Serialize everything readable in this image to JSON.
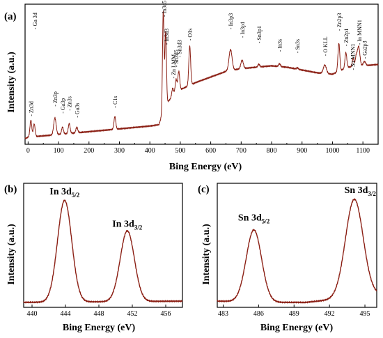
{
  "panels": [
    {
      "id": "a",
      "letter": "(a)",
      "xlabel": "Bing Energy (eV)",
      "ylabel": "Intensity (a.u.)"
    },
    {
      "id": "b",
      "letter": "(b)",
      "xlabel": "Bing Energy (eV)",
      "ylabel": "Intensity (a.u.)"
    },
    {
      "id": "c",
      "letter": "(c)",
      "xlabel": "Bing Energy (eV)",
      "ylabel": "Intensity (a.u.)"
    }
  ],
  "colors": {
    "curve": "#8b1f14",
    "axis": "#000000",
    "background": "#ffffff"
  },
  "chart_data": [
    {
      "type": "line",
      "panel": "a",
      "xlabel": "Bing Energy (eV)",
      "ylabel": "Intensity (a.u.)",
      "xlim": [
        -10,
        1150
      ],
      "ylim": [
        0,
        100
      ],
      "xticks": [
        0,
        100,
        200,
        300,
        400,
        500,
        600,
        700,
        800,
        900,
        1000,
        1100
      ],
      "yticks": [],
      "baseline": [
        [
          -10,
          4
        ],
        [
          0,
          5
        ],
        [
          50,
          6
        ],
        [
          100,
          7
        ],
        [
          150,
          8
        ],
        [
          200,
          9
        ],
        [
          250,
          10
        ],
        [
          300,
          11
        ],
        [
          350,
          12
        ],
        [
          400,
          13
        ],
        [
          430,
          14
        ],
        [
          450,
          28
        ],
        [
          470,
          33
        ],
        [
          500,
          39
        ],
        [
          550,
          44
        ],
        [
          600,
          48
        ],
        [
          650,
          52
        ],
        [
          700,
          54
        ],
        [
          750,
          55
        ],
        [
          800,
          56
        ],
        [
          850,
          55
        ],
        [
          900,
          53
        ],
        [
          950,
          51
        ],
        [
          1000,
          50
        ],
        [
          1050,
          55
        ],
        [
          1100,
          56
        ],
        [
          1150,
          57
        ]
      ],
      "peaks": [
        {
          "x": 9,
          "h": 12,
          "w": 3
        },
        {
          "x": 20,
          "h": 9,
          "w": 3
        },
        {
          "x": 88,
          "h": 12,
          "w": 4
        },
        {
          "x": 113,
          "h": 5,
          "w": 3
        },
        {
          "x": 135,
          "h": 7,
          "w": 3
        },
        {
          "x": 160,
          "h": 4,
          "w": 3
        },
        {
          "x": 285,
          "h": 9,
          "w": 3
        },
        {
          "x": 444,
          "h": 71,
          "w": 2.5
        },
        {
          "x": 452,
          "h": 52,
          "w": 2.5
        },
        {
          "x": 475,
          "h": 6,
          "w": 3
        },
        {
          "x": 486,
          "h": 10,
          "w": 3
        },
        {
          "x": 495,
          "h": 14,
          "w": 3
        },
        {
          "x": 531,
          "h": 28,
          "w": 3
        },
        {
          "x": 665,
          "h": 15,
          "w": 5
        },
        {
          "x": 703,
          "h": 6,
          "w": 4
        },
        {
          "x": 758,
          "h": 2,
          "w": 3
        },
        {
          "x": 826,
          "h": 2,
          "w": 3
        },
        {
          "x": 885,
          "h": 1,
          "w": 3
        },
        {
          "x": 975,
          "h": 6,
          "w": 5
        },
        {
          "x": 1021,
          "h": 20,
          "w": 3
        },
        {
          "x": 1044,
          "h": 11,
          "w": 3
        },
        {
          "x": 1068,
          "h": 6,
          "w": 3
        },
        {
          "x": 1078,
          "h": 7,
          "w": 3
        },
        {
          "x": 1086,
          "h": 14,
          "w": 4
        },
        {
          "x": 1105,
          "h": 3,
          "w": 4
        }
      ],
      "annotations": [
        {
          "text": "Zn3d",
          "x": 10,
          "y": 20
        },
        {
          "text": "Ga 3d",
          "x": 22,
          "y": 82
        },
        {
          "text": "Zn3p",
          "x": 88,
          "y": 27
        },
        {
          "text": "Ga3p",
          "x": 113,
          "y": 22
        },
        {
          "text": "Zn3s",
          "x": 135,
          "y": 24
        },
        {
          "text": "Ga3s",
          "x": 160,
          "y": 19
        },
        {
          "text": "C1s",
          "x": 285,
          "y": 26
        },
        {
          "text": "In3d5",
          "x": 446,
          "y": 91
        },
        {
          "text": "In3d3",
          "x": 455,
          "y": 71
        },
        {
          "text": "Zn LMM",
          "x": 477,
          "y": 47
        },
        {
          "text": "Sn3d5",
          "x": 487,
          "y": 55
        },
        {
          "text": "Sn3d3",
          "x": 497,
          "y": 62
        },
        {
          "text": "O1s",
          "x": 531,
          "y": 74
        },
        {
          "text": "In3p3",
          "x": 665,
          "y": 82
        },
        {
          "text": "In3p1",
          "x": 704,
          "y": 76
        },
        {
          "text": "Sn3p1",
          "x": 759,
          "y": 72
        },
        {
          "text": "In3s",
          "x": 826,
          "y": 66
        },
        {
          "text": "Sn3s",
          "x": 885,
          "y": 65
        },
        {
          "text": "O KLL",
          "x": 976,
          "y": 63
        },
        {
          "text": "Zn2p3",
          "x": 1022,
          "y": 81
        },
        {
          "text": "Zn2p1",
          "x": 1045,
          "y": 70
        },
        {
          "text": "Sn MNN1",
          "x": 1066,
          "y": 53
        },
        {
          "text": "In MNN1",
          "x": 1088,
          "y": 71
        },
        {
          "text": "Ga2p3",
          "x": 1105,
          "y": 61
        }
      ]
    },
    {
      "type": "line",
      "panel": "b",
      "xlabel": "Bing Energy (eV)",
      "ylabel": "Intensity (a.u.)",
      "xlim": [
        439,
        458
      ],
      "ylim": [
        0,
        100
      ],
      "xticks": [
        440,
        444,
        448,
        452,
        456
      ],
      "yticks": [],
      "baseline": [
        [
          439,
          4
        ],
        [
          458,
          5
        ]
      ],
      "peaks": [
        {
          "x": 443.9,
          "h": 82,
          "w": 0.85
        },
        {
          "x": 451.4,
          "h": 57,
          "w": 0.85
        }
      ],
      "annotations": [
        {
          "text": "In 3d",
          "sub": "5/2",
          "x": 443.9,
          "y": 91
        },
        {
          "text": "In 3d",
          "sub": "3/2",
          "x": 451.4,
          "y": 65
        }
      ]
    },
    {
      "type": "line",
      "panel": "c",
      "xlabel": "Bing Energy (eV)",
      "ylabel": "Intensity (a.u.)",
      "xlim": [
        482.5,
        496
      ],
      "ylim": [
        0,
        100
      ],
      "xticks": [
        483,
        486,
        489,
        492,
        495
      ],
      "yticks": [],
      "baseline": [
        [
          482.5,
          5
        ],
        [
          488,
          4
        ],
        [
          490,
          4
        ],
        [
          496,
          10
        ]
      ],
      "peaks": [
        {
          "x": 485.6,
          "h": 58,
          "w": 0.65
        },
        {
          "x": 494.1,
          "h": 79,
          "w": 0.75
        }
      ],
      "annotations": [
        {
          "text": "Sn 3d",
          "sub": "5/2",
          "x": 485.6,
          "y": 70
        },
        {
          "text": "Sn 3d",
          "sub": "3/2",
          "x": 494.6,
          "y": 92
        }
      ]
    }
  ]
}
